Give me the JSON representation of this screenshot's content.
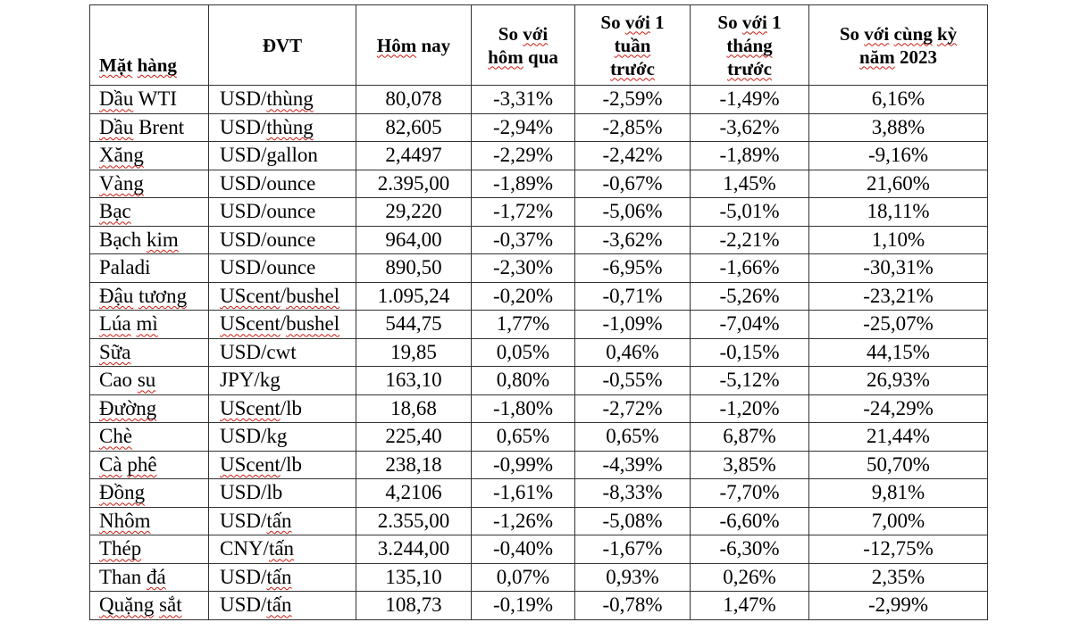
{
  "colors": {
    "background": "#ffffff",
    "text": "#000000",
    "border": "#333333",
    "squiggle": "#cc1a12"
  },
  "table": {
    "value_keys": [
      "hom-nay",
      "so-voi-hom-qua",
      "so-voi-1-tuan-truoc",
      "so-voi-1-thang-truoc",
      "so-voi-cung-ky-nam-2023"
    ],
    "columns": [
      {
        "key": "mat-hang",
        "lines": [
          [
            [
              "Mặt",
              true
            ],
            [
              " ",
              false
            ],
            [
              "hàng",
              true
            ]
          ]
        ]
      },
      {
        "key": "dvt",
        "lines": [
          [
            [
              "ĐVT",
              false
            ]
          ]
        ]
      },
      {
        "key": "hom-nay",
        "lines": [
          [
            [
              "Hôm",
              true
            ],
            [
              " nay",
              false
            ]
          ]
        ]
      },
      {
        "key": "so-voi-hom-qua",
        "lines": [
          [
            [
              "So ",
              false
            ],
            [
              "với",
              true
            ]
          ],
          [
            [
              "hôm",
              true
            ],
            [
              " qua",
              false
            ]
          ]
        ]
      },
      {
        "key": "so-voi-1-tuan-truoc",
        "lines": [
          [
            [
              "So ",
              false
            ],
            [
              "với",
              true
            ],
            [
              " 1",
              false
            ]
          ],
          [
            [
              "tuần",
              true
            ]
          ],
          [
            [
              "trước",
              true
            ]
          ]
        ]
      },
      {
        "key": "so-voi-1-thang-truoc",
        "lines": [
          [
            [
              "So ",
              false
            ],
            [
              "với",
              true
            ],
            [
              " 1",
              false
            ]
          ],
          [
            [
              "tháng",
              true
            ]
          ],
          [
            [
              "trước",
              true
            ]
          ]
        ]
      },
      {
        "key": "so-voi-cung-ky-nam-2023",
        "lines": [
          [
            [
              "So ",
              false
            ],
            [
              "với",
              true
            ],
            [
              " ",
              false
            ],
            [
              "cùng",
              true
            ],
            [
              " ",
              false
            ],
            [
              "kỳ",
              true
            ]
          ],
          [
            [
              "năm",
              true
            ],
            [
              " 2023",
              false
            ]
          ]
        ]
      }
    ],
    "rows": [
      {
        "commodity": [
          [
            "Dầu",
            true
          ],
          [
            " WTI",
            false
          ]
        ],
        "unit": [
          [
            "USD/",
            false
          ],
          [
            "thùng",
            true
          ]
        ],
        "values": [
          "80,078",
          "-3,31%",
          "-2,59%",
          "-1,49%",
          "6,16%"
        ]
      },
      {
        "commodity": [
          [
            "Dầu",
            true
          ],
          [
            " Brent",
            false
          ]
        ],
        "unit": [
          [
            "USD/",
            false
          ],
          [
            "thùng",
            true
          ]
        ],
        "values": [
          "82,605",
          "-2,94%",
          "-2,85%",
          "-3,62%",
          "3,88%"
        ]
      },
      {
        "commodity": [
          [
            "Xăng",
            true
          ]
        ],
        "unit": [
          [
            "USD/gallon",
            false
          ]
        ],
        "values": [
          "2,4497",
          "-2,29%",
          "-2,42%",
          "-1,89%",
          "-9,16%"
        ]
      },
      {
        "commodity": [
          [
            "Vàng",
            true
          ]
        ],
        "unit": [
          [
            "USD/ounce",
            false
          ]
        ],
        "values": [
          "2.395,00",
          "-1,89%",
          "-0,67%",
          "1,45%",
          "21,60%"
        ]
      },
      {
        "commodity": [
          [
            "Bạc",
            true
          ]
        ],
        "unit": [
          [
            "USD/ounce",
            false
          ]
        ],
        "values": [
          "29,220",
          "-1,72%",
          "-5,06%",
          "-5,01%",
          "18,11%"
        ]
      },
      {
        "commodity": [
          [
            "Bạch ",
            false
          ],
          [
            "kim",
            true
          ]
        ],
        "unit": [
          [
            "USD/ounce",
            false
          ]
        ],
        "values": [
          "964,00",
          "-0,37%",
          "-3,62%",
          "-2,21%",
          "1,10%"
        ]
      },
      {
        "commodity": [
          [
            "Paladi",
            false
          ]
        ],
        "unit": [
          [
            "USD/ounce",
            false
          ]
        ],
        "values": [
          "890,50",
          "-2,30%",
          "-6,95%",
          "-1,66%",
          "-30,31%"
        ]
      },
      {
        "commodity": [
          [
            "Đậu",
            true
          ],
          [
            " ",
            false
          ],
          [
            "tương",
            true
          ]
        ],
        "unit": [
          [
            "UScent",
            true
          ],
          [
            "/",
            false
          ],
          [
            "bushel",
            true
          ]
        ],
        "values": [
          "1.095,24",
          "-0,20%",
          "-0,71%",
          "-5,26%",
          "-23,21%"
        ]
      },
      {
        "commodity": [
          [
            "Lúa",
            true
          ],
          [
            " ",
            false
          ],
          [
            "mì",
            true
          ]
        ],
        "unit": [
          [
            "UScent",
            true
          ],
          [
            "/",
            false
          ],
          [
            "bushel",
            true
          ]
        ],
        "values": [
          "544,75",
          "1,77%",
          "-1,09%",
          "-7,04%",
          "-25,07%"
        ]
      },
      {
        "commodity": [
          [
            "Sữa",
            true
          ]
        ],
        "unit": [
          [
            "USD/cwt",
            false
          ]
        ],
        "values": [
          "19,85",
          "0,05%",
          "0,46%",
          "-0,15%",
          "44,15%"
        ]
      },
      {
        "commodity": [
          [
            "Cao ",
            false
          ],
          [
            "su",
            true
          ]
        ],
        "unit": [
          [
            "JPY/kg",
            false
          ]
        ],
        "values": [
          "163,10",
          "0,80%",
          "-0,55%",
          "-5,12%",
          "26,93%"
        ]
      },
      {
        "commodity": [
          [
            "Đường",
            true
          ]
        ],
        "unit": [
          [
            "UScent",
            true
          ],
          [
            "/lb",
            false
          ]
        ],
        "values": [
          "18,68",
          "-1,80%",
          "-2,72%",
          "-1,20%",
          "-24,29%"
        ]
      },
      {
        "commodity": [
          [
            "Chè",
            true
          ]
        ],
        "unit": [
          [
            "USD/kg",
            false
          ]
        ],
        "values": [
          "225,40",
          "0,65%",
          "0,65%",
          "6,87%",
          "21,44%"
        ]
      },
      {
        "commodity": [
          [
            "Cà",
            true
          ],
          [
            " ",
            false
          ],
          [
            "phê",
            true
          ]
        ],
        "unit": [
          [
            "UScent",
            true
          ],
          [
            "/lb",
            false
          ]
        ],
        "values": [
          "238,18",
          "-0,99%",
          "-4,39%",
          "3,85%",
          "50,70%"
        ]
      },
      {
        "commodity": [
          [
            "Đồng",
            true
          ]
        ],
        "unit": [
          [
            "USD/lb",
            false
          ]
        ],
        "values": [
          "4,2106",
          "-1,61%",
          "-8,33%",
          "-7,70%",
          "9,81%"
        ]
      },
      {
        "commodity": [
          [
            "Nhôm",
            true
          ]
        ],
        "unit": [
          [
            "USD/",
            false
          ],
          [
            "tấn",
            true
          ]
        ],
        "values": [
          "2.355,00",
          "-1,26%",
          "-5,08%",
          "-6,60%",
          "7,00%"
        ]
      },
      {
        "commodity": [
          [
            "Thép",
            true
          ]
        ],
        "unit": [
          [
            "CNY/",
            false
          ],
          [
            "tấn",
            true
          ]
        ],
        "values": [
          "3.244,00",
          "-0,40%",
          "-1,67%",
          "-6,30%",
          "-12,75%"
        ]
      },
      {
        "commodity": [
          [
            "Than ",
            false
          ],
          [
            "đá",
            true
          ]
        ],
        "unit": [
          [
            "USD/",
            false
          ],
          [
            "tấn",
            true
          ]
        ],
        "values": [
          "135,10",
          "0,07%",
          "0,93%",
          "0,26%",
          "2,35%"
        ]
      },
      {
        "commodity": [
          [
            "Quặng",
            true
          ],
          [
            " ",
            false
          ],
          [
            "sắt",
            true
          ]
        ],
        "unit": [
          [
            "USD/",
            false
          ],
          [
            "tấn",
            true
          ]
        ],
        "values": [
          "108,73",
          "-0,19%",
          "-0,78%",
          "1,47%",
          "-2,99%"
        ]
      }
    ]
  }
}
